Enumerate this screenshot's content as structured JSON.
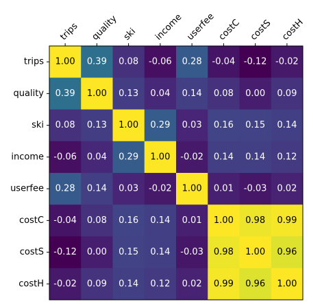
{
  "chart_data": {
    "type": "heatmap",
    "title": "",
    "xlabel": "",
    "ylabel": "",
    "x_categories": [
      "trips",
      "quality",
      "ski",
      "income",
      "userfee",
      "costC",
      "costS",
      "costH"
    ],
    "y_categories": [
      "trips",
      "quality",
      "ski",
      "income",
      "userfee",
      "costC",
      "costS",
      "costH"
    ],
    "values": [
      [
        1.0,
        0.39,
        0.08,
        -0.06,
        0.28,
        -0.04,
        -0.12,
        -0.02
      ],
      [
        0.39,
        1.0,
        0.13,
        0.04,
        0.14,
        0.08,
        0.0,
        0.09
      ],
      [
        0.08,
        0.13,
        1.0,
        0.29,
        0.03,
        0.16,
        0.15,
        0.14
      ],
      [
        -0.06,
        0.04,
        0.29,
        1.0,
        -0.02,
        0.14,
        0.14,
        0.12
      ],
      [
        0.28,
        0.14,
        0.03,
        -0.02,
        1.0,
        0.01,
        -0.03,
        0.02
      ],
      [
        -0.04,
        0.08,
        0.16,
        0.14,
        0.01,
        1.0,
        0.98,
        0.99
      ],
      [
        -0.12,
        0.0,
        0.15,
        0.14,
        -0.03,
        0.98,
        1.0,
        0.96
      ],
      [
        -0.02,
        0.09,
        0.14,
        0.12,
        0.02,
        0.99,
        0.96,
        1.0
      ]
    ],
    "value_format": "0.00",
    "colormap": "viridis",
    "x_tick_position": "top",
    "x_tick_rotation": 45,
    "grid": false,
    "legend": "none",
    "colors": {
      "text_on_light": "#000000",
      "text_on_dark": "#ffffff",
      "axis": "#000000"
    }
  }
}
